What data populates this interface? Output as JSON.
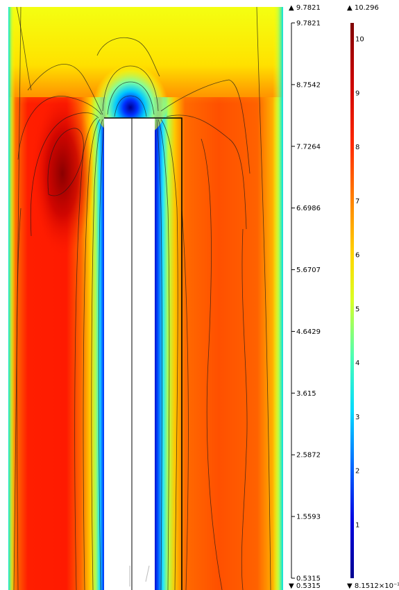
{
  "chart_data": {
    "type": "heatmap",
    "colormap": "rainbow",
    "contour_lines": true,
    "legend_placement": "right",
    "contour_legend": {
      "max_marker": "▲ 9.7821",
      "min_marker": "▼ 0.5315",
      "ticks": [
        "9.7821",
        "8.7542",
        "7.7264",
        "6.6986",
        "5.6707",
        "4.6429",
        "3.615",
        "2.5872",
        "1.5593",
        "0.5315"
      ]
    },
    "color_legend": {
      "max_marker": "▲ 10.296",
      "min_marker": "▼ 8.1512×10⁻³",
      "range": [
        0.0081512,
        10.296
      ],
      "ticks": [
        "10",
        "9",
        "8",
        "7",
        "6",
        "5",
        "4",
        "3",
        "2",
        "1"
      ],
      "tick_values": [
        10,
        9,
        8,
        7,
        6,
        5,
        4,
        3,
        2,
        1
      ]
    }
  },
  "colors": {
    "field_low": "#00008f",
    "field_mid": "#ffff00",
    "field_high": "#7f0000",
    "contour": "#1a1a1a",
    "obstacle": "#ffffff"
  }
}
